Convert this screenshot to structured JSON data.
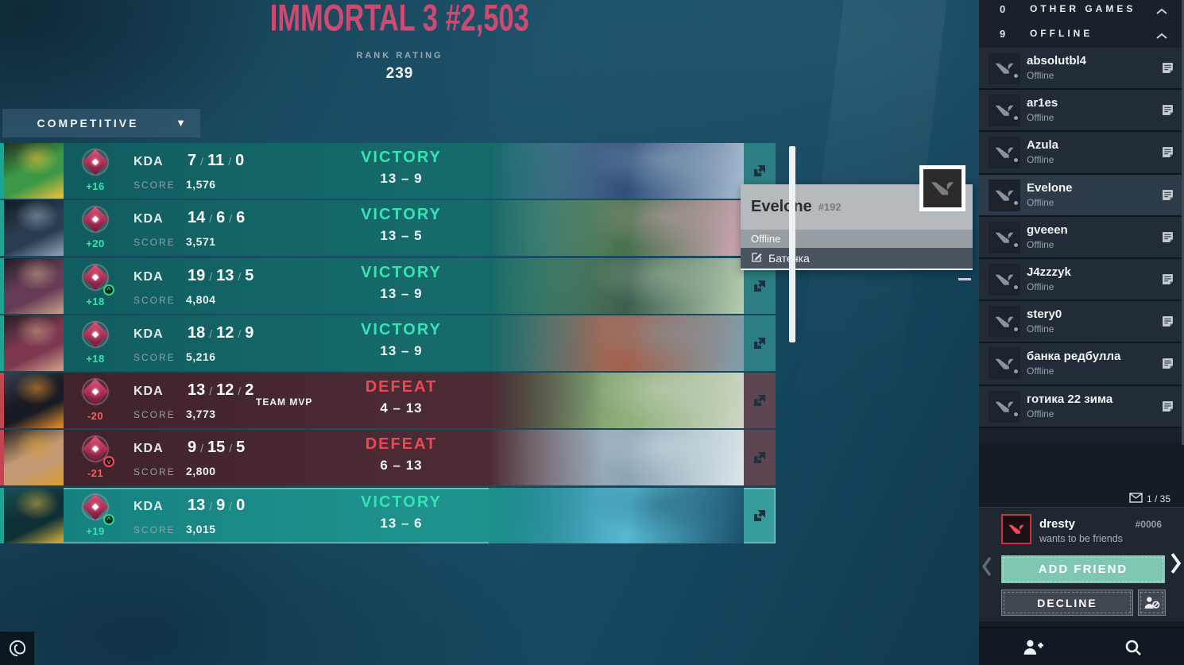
{
  "colors": {
    "pink": "#cf4a70",
    "victory": "#35e3b5",
    "defeat": "#ef4655",
    "negative": "#ff5a5f",
    "add_friend": "#7fc7b3"
  },
  "header": {
    "rank_title": "IMMORTAL 3 #2,503",
    "rank_rating_label": "RANK RATING",
    "rank_rating_value": "239"
  },
  "match_history": {
    "filter_label": "COMPETITIVE",
    "dropdown_caret": "▼",
    "kda_label": "KDA",
    "score_label": "SCORE",
    "team_mvp_label": "TEAM MVP",
    "matches": [
      {
        "result": "VICTORY",
        "type": "victory",
        "match_score": "13 – 9",
        "rr_change": "+16",
        "rr_sign": "positive",
        "kda": [
          "7",
          "11",
          "0"
        ],
        "combat_score": "1,576",
        "team_mvp": false,
        "rank_arrow": null,
        "highlight": false,
        "agent_colors": [
          "#3f9c46",
          "#e8c23a",
          "#232f1f"
        ],
        "map_colors": [
          "#6d87a8",
          "#31507a",
          "#a8bdd0"
        ]
      },
      {
        "result": "VICTORY",
        "type": "victory",
        "match_score": "13 – 5",
        "rr_change": "+20",
        "rr_sign": "positive",
        "kda": [
          "14",
          "6",
          "6"
        ],
        "combat_score": "3,571",
        "team_mvp": false,
        "rank_arrow": null,
        "highlight": false,
        "agent_colors": [
          "#2c3b52",
          "#8f9bb0",
          "#11181f"
        ],
        "map_colors": [
          "#7ba183",
          "#48704f",
          "#d3a8b4"
        ]
      },
      {
        "result": "VICTORY",
        "type": "victory",
        "match_score": "13 – 9",
        "rr_change": "+18",
        "rr_sign": "positive",
        "kda": [
          "19",
          "13",
          "5"
        ],
        "combat_score": "4,804",
        "team_mvp": false,
        "rank_arrow": "up",
        "highlight": false,
        "agent_colors": [
          "#6b3a55",
          "#c59a86",
          "#241a26"
        ],
        "map_colors": [
          "#6f9a6d",
          "#3c5f4e",
          "#b7cdb2"
        ]
      },
      {
        "result": "VICTORY",
        "type": "victory",
        "match_score": "13 – 9",
        "rr_change": "+18",
        "rr_sign": "positive",
        "kda": [
          "18",
          "12",
          "9"
        ],
        "combat_score": "5,216",
        "team_mvp": false,
        "rank_arrow": null,
        "highlight": false,
        "agent_colors": [
          "#83364f",
          "#cf9a85",
          "#2b1b25"
        ],
        "map_colors": [
          "#8d8579",
          "#a2604c",
          "#7fa0ad"
        ]
      },
      {
        "result": "DEFEAT",
        "type": "defeat",
        "match_score": "4 – 13",
        "rr_change": "-20",
        "rr_sign": "negative",
        "kda": [
          "13",
          "12",
          "2"
        ],
        "combat_score": "3,773",
        "team_mvp": true,
        "rank_arrow": null,
        "highlight": false,
        "agent_colors": [
          "#171b23",
          "#d98a2b",
          "#3a4252"
        ],
        "map_colors": [
          "#5c8a5e",
          "#8fae7a",
          "#cdd6c5"
        ]
      },
      {
        "result": "DEFEAT",
        "type": "defeat",
        "match_score": "6 – 13",
        "rr_change": "-21",
        "rr_sign": "negative",
        "kda": [
          "9",
          "15",
          "5"
        ],
        "combat_score": "2,800",
        "team_mvp": false,
        "rank_arrow": "down",
        "highlight": false,
        "agent_colors": [
          "#caa078",
          "#e0a43a",
          "#2b241e"
        ],
        "map_colors": [
          "#b9c6ce",
          "#8ba4b4",
          "#dde6ea"
        ]
      },
      {
        "result": "VICTORY",
        "type": "victory",
        "match_score": "13 – 6",
        "rr_change": "+19",
        "rr_sign": "positive",
        "kda": [
          "13",
          "9",
          "0"
        ],
        "combat_score": "3,015",
        "team_mvp": false,
        "rank_arrow": "up",
        "highlight": true,
        "agent_colors": [
          "#0e2b33",
          "#caa53a",
          "#1c4d55"
        ],
        "map_colors": [
          "#2e7d9d",
          "#55b9cf",
          "#1d4f6b"
        ]
      }
    ]
  },
  "context_menu": {
    "player_name": "Evelone",
    "player_tag": "#192",
    "status": "Offline",
    "note_action": "Батечка"
  },
  "friends_panel": {
    "sections": [
      {
        "count": "0",
        "label": "OTHER GAMES"
      },
      {
        "count": "9",
        "label": "OFFLINE"
      }
    ],
    "friends": [
      {
        "name": "absolutbl4",
        "status": "Offline",
        "selected": false
      },
      {
        "name": "ar1es",
        "status": "Offline",
        "selected": false
      },
      {
        "name": "Azula",
        "status": "Offline",
        "selected": false
      },
      {
        "name": "Evelone",
        "status": "Offline",
        "selected": true
      },
      {
        "name": "gveeen",
        "status": "Offline",
        "selected": false
      },
      {
        "name": "J4zzzyk",
        "status": "Offline",
        "selected": false
      },
      {
        "name": "stery0",
        "status": "Offline",
        "selected": false
      },
      {
        "name": "банка редбулла",
        "status": "Offline",
        "selected": false
      },
      {
        "name": "готика 22 зима",
        "status": "Offline",
        "selected": false
      }
    ],
    "requests": {
      "counter": "1 / 35",
      "name": "dresty",
      "tag": "#0006",
      "subtitle": "wants to be friends",
      "accept_label": "ADD FRIEND",
      "decline_label": "DECLINE"
    }
  }
}
